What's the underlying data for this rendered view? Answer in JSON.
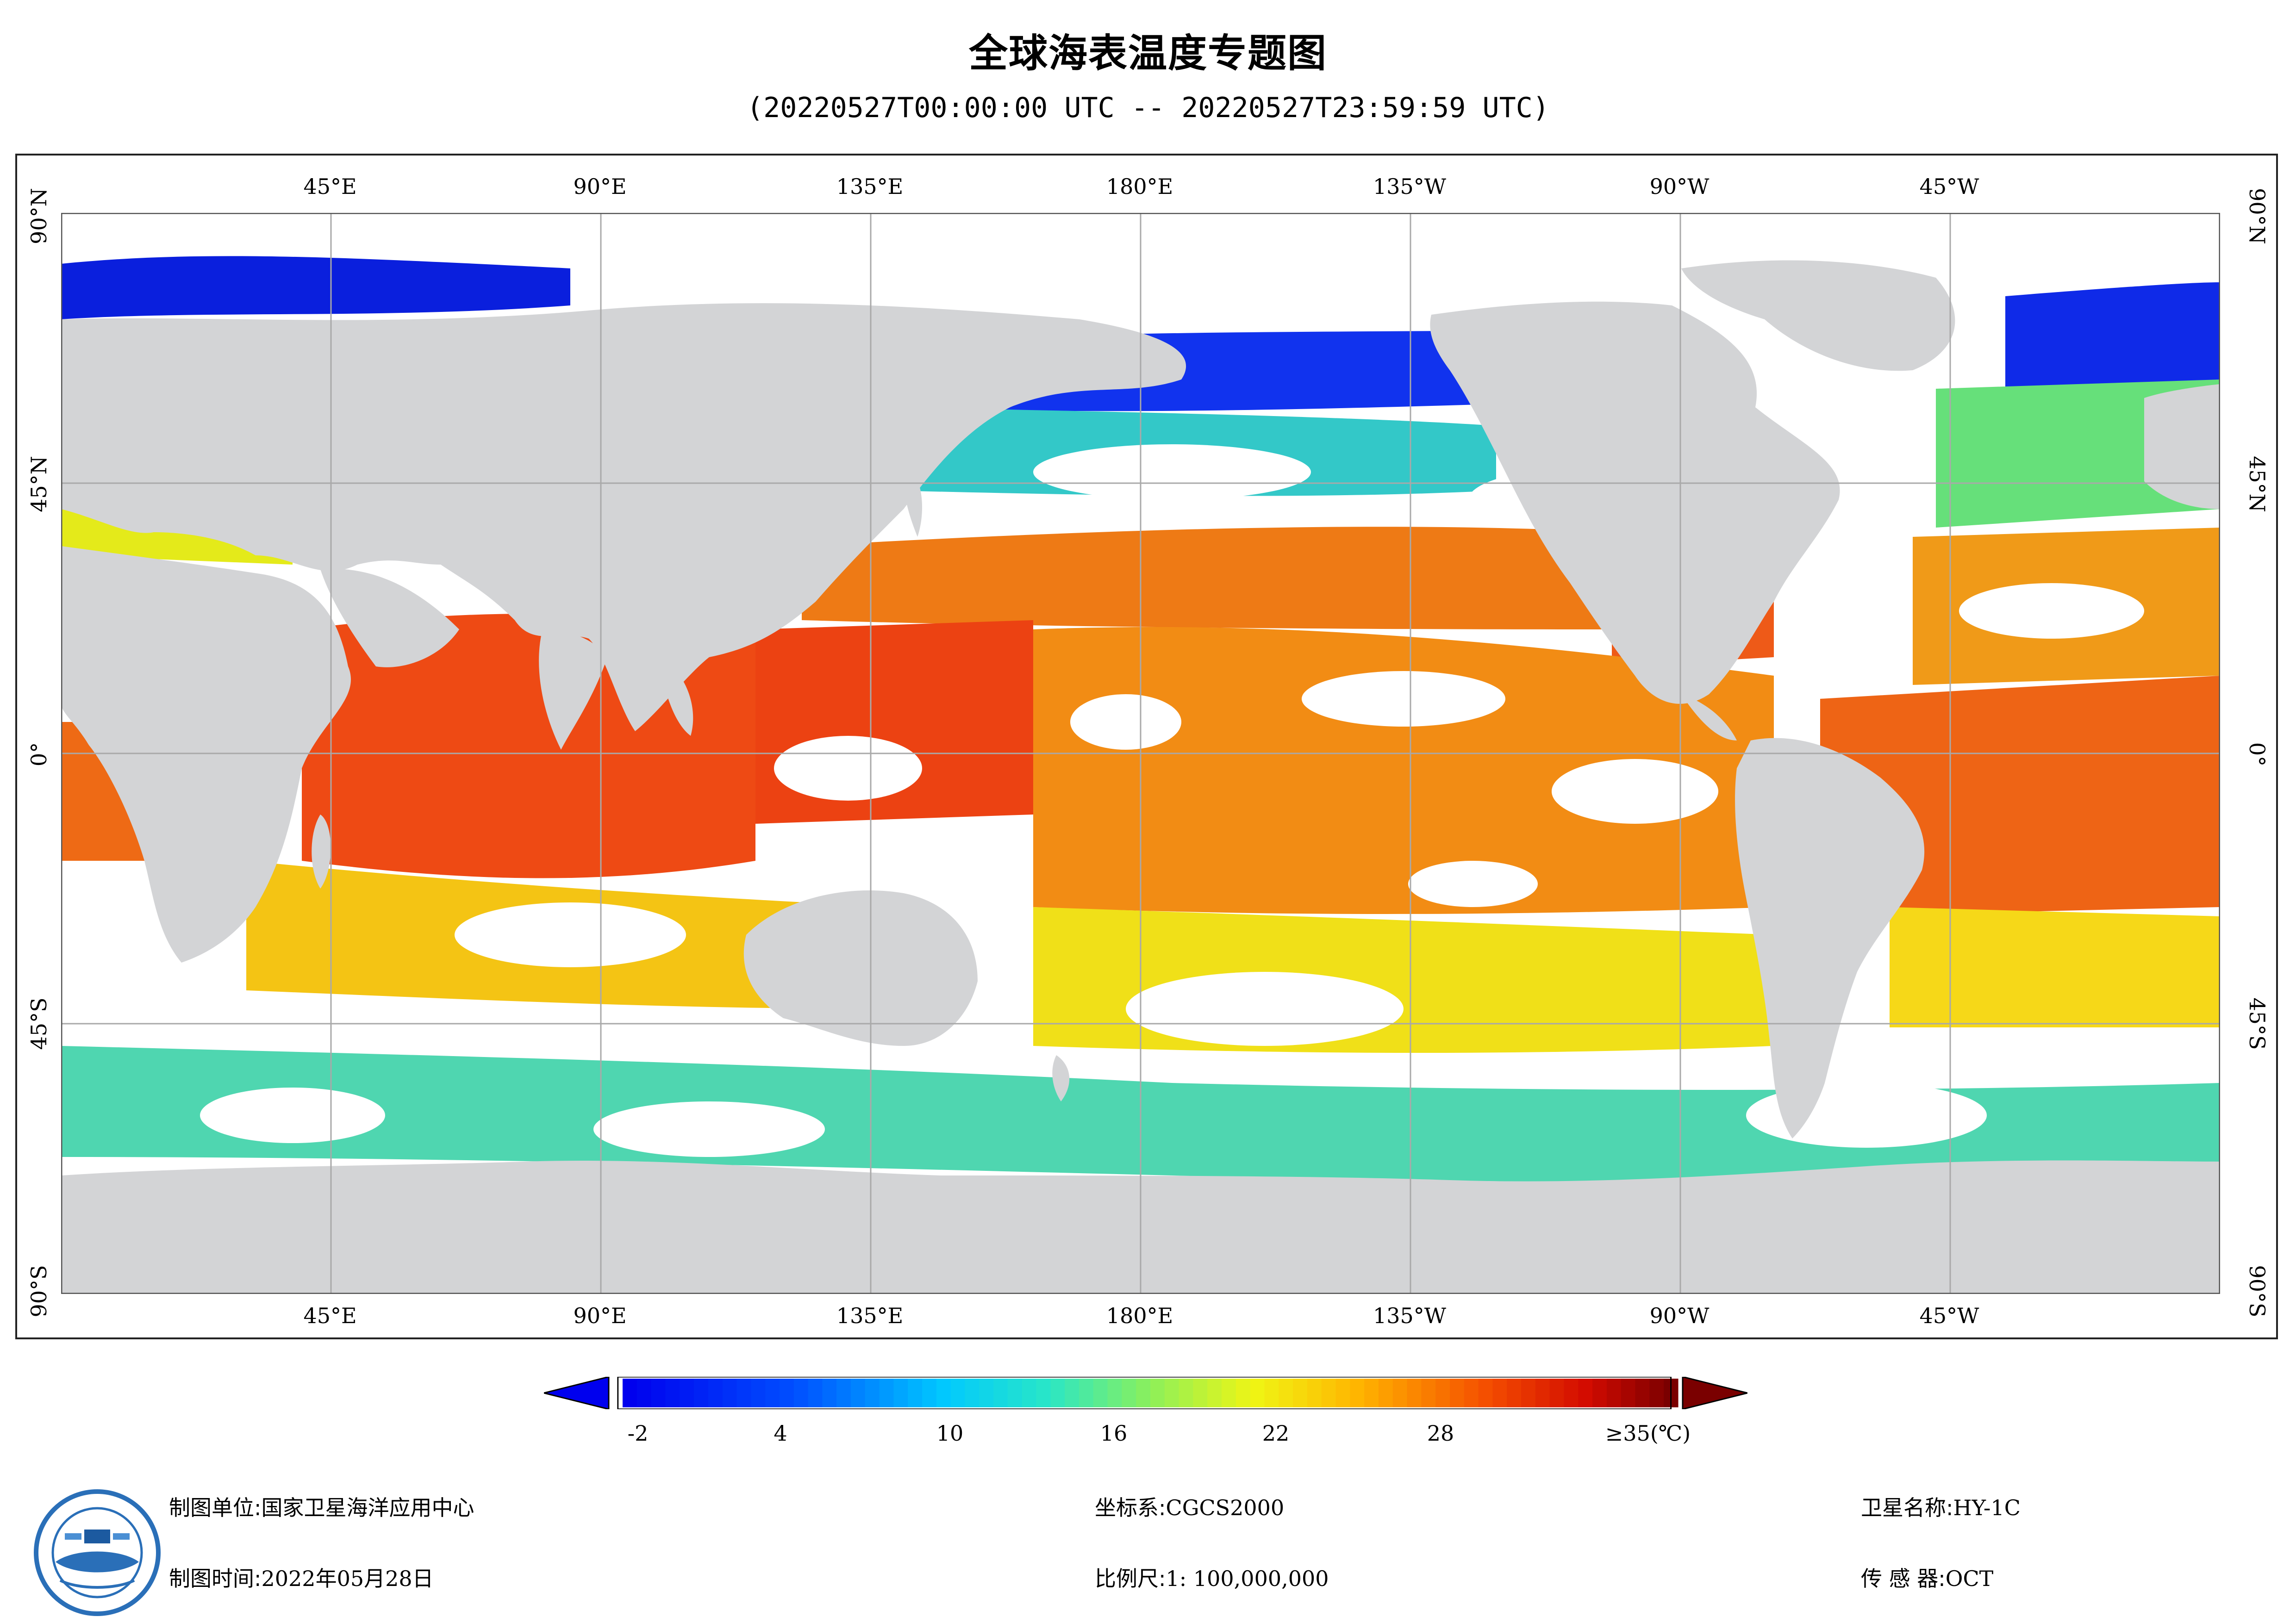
{
  "title": "全球海表温度专题图",
  "subtitle": "(20220527T00:00:00 UTC -- 20220527T23:59:59 UTC)",
  "longitude_labels": [
    "45°E",
    "90°E",
    "135°E",
    "180°E",
    "135°W",
    "90°W",
    "45°W"
  ],
  "latitude_labels": [
    "90°N",
    "45°N",
    "0°",
    "45°S",
    "90°S"
  ],
  "colors": {
    "land": "#d3d4d6",
    "no_data": "#ffffff",
    "grid": "#a9a9a9"
  },
  "colorbar": {
    "labels": [
      "-2",
      "4",
      "10",
      "16",
      "22",
      "28",
      "≥35(℃)"
    ],
    "min_color": "#0000ee",
    "max_color": "#7a0000"
  },
  "footer": {
    "org_label": "制图单位:",
    "org_value": "国家卫星海洋应用中心",
    "time_label": "制图时间:",
    "time_value": "2022年05月28日",
    "crs_label": "坐标系:",
    "crs_value": "CGCS2000",
    "scale_label": "比例尺:",
    "scale_value": "1: 100,000,000",
    "sat_label": "卫星名称:",
    "sat_value": "HY-1C",
    "sensor_label": "传 感 器:",
    "sensor_value": "OCT"
  },
  "logo_icon": "nsoas-logo-icon"
}
